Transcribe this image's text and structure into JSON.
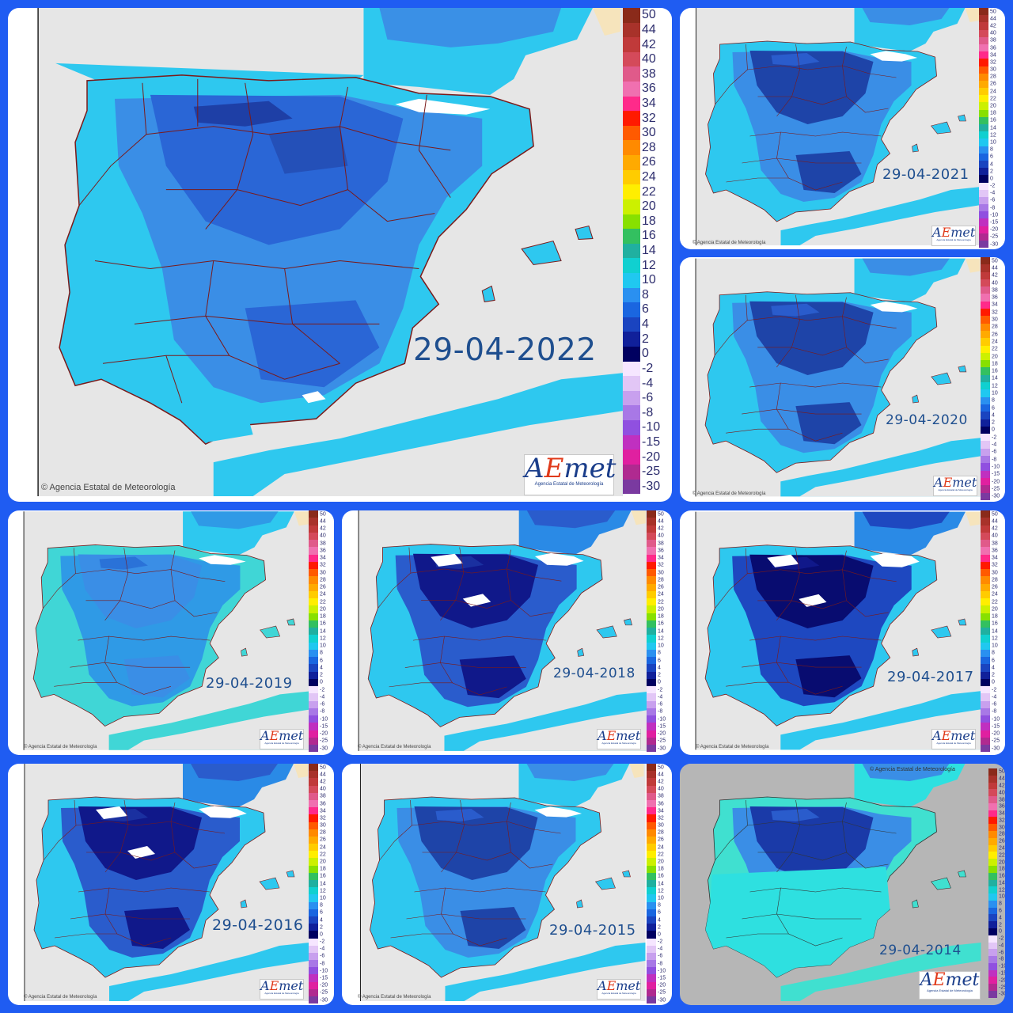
{
  "credit": "© Agencia Estatal de Meteorología",
  "logo": {
    "wordmark_a": "A",
    "wordmark_e": "E",
    "wordmark_rest": "met",
    "subtitle": "Agencia Estatal de Meteorología"
  },
  "legend": {
    "labels": [
      "50",
      "44",
      "42",
      "40",
      "38",
      "36",
      "34",
      "32",
      "30",
      "28",
      "26",
      "24",
      "22",
      "20",
      "18",
      "16",
      "14",
      "12",
      "10",
      "8",
      "6",
      "4",
      "2",
      "0",
      "-2",
      "-4",
      "-6",
      "-8",
      "-10",
      "-15",
      "-20",
      "-25",
      "-30"
    ],
    "colors": [
      "#8a2a1a",
      "#a8322a",
      "#c03a3a",
      "#d44a5a",
      "#e05a8a",
      "#f070b0",
      "#ff2a8a",
      "#ff1a00",
      "#ff5a00",
      "#ff8a00",
      "#ffaa00",
      "#ffcc00",
      "#ffee00",
      "#ccf000",
      "#88e000",
      "#33c060",
      "#20b0a0",
      "#10d0d0",
      "#20c8f0",
      "#2a90f0",
      "#1a66e0",
      "#1a44c0",
      "#10209a",
      "#000060",
      "#f6e6ff",
      "#e2c6f6",
      "#c8a0ee",
      "#a878e6",
      "#9050e0",
      "#c030c0",
      "#e020a0",
      "#b02a90",
      "#7a3aa0"
    ]
  },
  "panels": [
    {
      "id": "2022",
      "date": "29-04-2022",
      "tone": "mid"
    },
    {
      "id": "2021",
      "date": "29-04-2021",
      "tone": "mid"
    },
    {
      "id": "2020",
      "date": "29-04-2020",
      "tone": "mid"
    },
    {
      "id": "2019",
      "date": "29-04-2019",
      "tone": "light"
    },
    {
      "id": "2018",
      "date": "29-04-2018",
      "tone": "cold"
    },
    {
      "id": "2017",
      "date": "29-04-2017",
      "tone": "verycold"
    },
    {
      "id": "2016",
      "date": "29-04-2016",
      "tone": "cold"
    },
    {
      "id": "2015",
      "date": "29-04-2015",
      "tone": "mid"
    },
    {
      "id": "2014",
      "date": "29-04-2014",
      "tone": "grey"
    }
  ]
}
